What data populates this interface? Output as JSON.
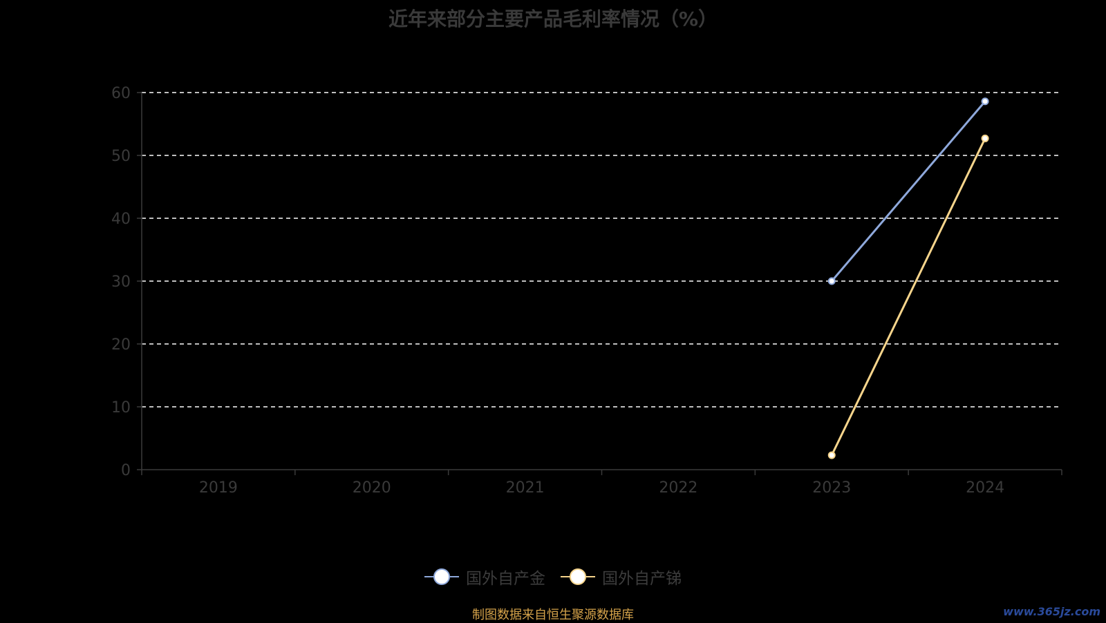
{
  "colors": {
    "background": "#000000",
    "gold": "#8fa9dc",
    "antimony": "#f7d58c",
    "grid": "#ffffff",
    "axis": "#3a3a3a",
    "source": "#d4a24a"
  },
  "chart_data": {
    "type": "line",
    "title": "近年来部分主要产品毛利率情况（%）",
    "categories": [
      "2019",
      "2020",
      "2021",
      "2022",
      "2023",
      "2024"
    ],
    "ylim": [
      0,
      60
    ],
    "yticks": [
      "0",
      "10",
      "20",
      "30",
      "40",
      "50",
      "60"
    ],
    "grid": true,
    "legend_position": "bottom",
    "series": [
      {
        "name": "国外自产金",
        "color": "#8fa9dc",
        "values": [
          null,
          null,
          null,
          null,
          30.0,
          58.6
        ]
      },
      {
        "name": "国外自产锑",
        "color": "#f7d58c",
        "values": [
          null,
          null,
          null,
          null,
          2.3,
          52.7
        ]
      }
    ]
  },
  "source_note": "制图数据来自恒生聚源数据库",
  "watermark": "www.365jz.com"
}
